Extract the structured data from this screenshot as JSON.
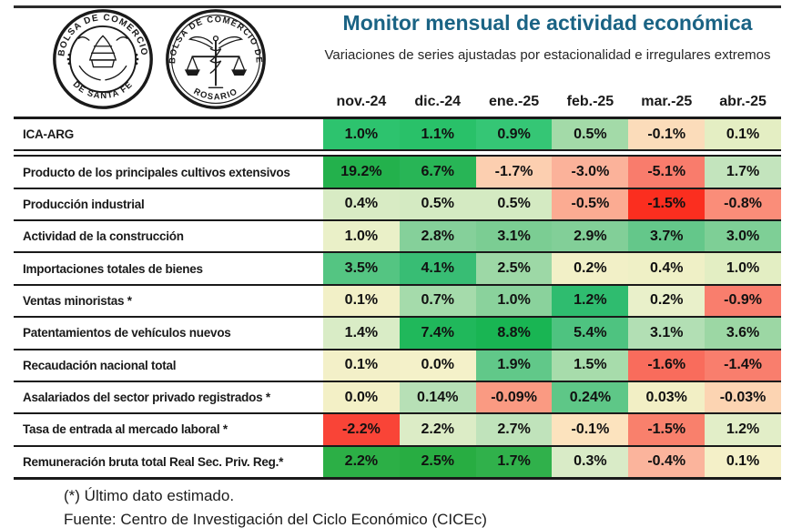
{
  "header": {
    "title": "Monitor mensual de actividad económica",
    "title_color": "#1a6384",
    "subtitle": "Variaciones de series ajustadas por estacionalidad e irregulares extremos",
    "logos": [
      {
        "name": "bolsa-de-comercio-de-santa-fe",
        "text_top": "BOLSA DE COMERCIO",
        "text_bottom": "DE SANTA FE"
      },
      {
        "name": "bolsa-de-comercio-de-rosario",
        "text_top": "BOLSA DE COMERCIO DE",
        "text_bottom": "ROSARIO"
      }
    ]
  },
  "chart_data": {
    "type": "heatmap",
    "title": "Monitor mensual de actividad económica",
    "subtitle": "Variaciones de series ajustadas por estacionalidad e irregulares extremos",
    "columns": [
      "nov.-24",
      "dic.-24",
      "ene.-25",
      "feb.-25",
      "mar.-25",
      "abr.-25"
    ],
    "rows": [
      {
        "label": "ICA-ARG",
        "values": [
          "1.0%",
          "1.1%",
          "0.9%",
          "0.5%",
          "-0.1%",
          "0.1%"
        ],
        "colors": [
          "#2dc36e",
          "#29c169",
          "#35c675",
          "#a3daa8",
          "#fbdcba",
          "#e4eec3"
        ]
      },
      {
        "label": "Producto de los principales cultivos extensivos",
        "values": [
          "19.2%",
          "6.7%",
          "-1.7%",
          "-3.0%",
          "-5.1%",
          "1.7%"
        ],
        "colors": [
          "#23b14c",
          "#28b556",
          "#fccfb0",
          "#fbb29a",
          "#f97c6c",
          "#c3e4bd"
        ]
      },
      {
        "label": "Producción industrial",
        "values": [
          "0.4%",
          "0.5%",
          "0.5%",
          "-0.5%",
          "-1.5%",
          "-0.8%"
        ],
        "colors": [
          "#d8ebc4",
          "#d4eac2",
          "#d4eac2",
          "#fbab92",
          "#fb2e1f",
          "#fa8d79"
        ]
      },
      {
        "label": "Actividad de la construcción",
        "values": [
          "1.0%",
          "2.8%",
          "3.1%",
          "2.9%",
          "3.7%",
          "3.0%"
        ],
        "colors": [
          "#eaf0c8",
          "#85d09a",
          "#7bcd93",
          "#82cf98",
          "#64c78a",
          "#7ecf96"
        ]
      },
      {
        "label": "Importaciones totales de bienes",
        "values": [
          "3.5%",
          "4.1%",
          "2.5%",
          "0.2%",
          "0.4%",
          "1.0%"
        ],
        "colors": [
          "#54c582",
          "#38bd74",
          "#9dd8a6",
          "#f2f0c7",
          "#eff0c6",
          "#e3eec3"
        ]
      },
      {
        "label": "Ventas minoristas *",
        "values": [
          "0.1%",
          "0.7%",
          "1.0%",
          "1.2%",
          "0.2%",
          "-0.9%"
        ],
        "colors": [
          "#f2f0c7",
          "#a5dbab",
          "#8ad29c",
          "#2fbc6f",
          "#e9f0ca",
          "#f97e6d"
        ]
      },
      {
        "label": "Patentamientos de vehículos nuevos",
        "values": [
          "1.4%",
          "7.4%",
          "8.8%",
          "5.4%",
          "3.1%",
          "3.6%"
        ],
        "colors": [
          "#d9ecc6",
          "#20b85b",
          "#19b553",
          "#4ec380",
          "#b2dfb4",
          "#9cd7a4"
        ]
      },
      {
        "label": "Recaudación nacional total",
        "values": [
          "0.1%",
          "0.0%",
          "1.9%",
          "1.5%",
          "-1.6%",
          "-1.4%"
        ],
        "colors": [
          "#f3f0c8",
          "#f4f1c9",
          "#61c889",
          "#a7dcab",
          "#f96c5c",
          "#f97e6d"
        ]
      },
      {
        "label": "Asalariados del sector privado registrados *",
        "values": [
          "0.0%",
          "0.14%",
          "-0.09%",
          "0.24%",
          "0.03%",
          "-0.03%"
        ],
        "colors": [
          "#f3f0c6",
          "#b7e0b6",
          "#fa9a82",
          "#5ec787",
          "#f2efc5",
          "#fcd4b2"
        ]
      },
      {
        "label": "Tasa de entrada al mercado laboral *",
        "values": [
          "-2.2%",
          "2.2%",
          "2.7%",
          "-0.1%",
          "-1.5%",
          "1.2%"
        ],
        "colors": [
          "#f94437",
          "#dcecc6",
          "#c0e3bb",
          "#fce3be",
          "#f9806c",
          "#e2eec8"
        ]
      },
      {
        "label": "Remuneración bruta total Real Sec. Priv. Reg.*",
        "values": [
          "2.2%",
          "2.5%",
          "1.7%",
          "0.3%",
          "-0.4%",
          "0.1%"
        ],
        "colors": [
          "#2caf46",
          "#28ad42",
          "#30b14b",
          "#d9ebc7",
          "#fbb49c",
          "#f4f0c8"
        ]
      }
    ]
  },
  "footer": {
    "note": "(*) Último dato estimado.",
    "source": "Fuente: Centro de Investigación del Ciclo Económico (CICEc)"
  }
}
